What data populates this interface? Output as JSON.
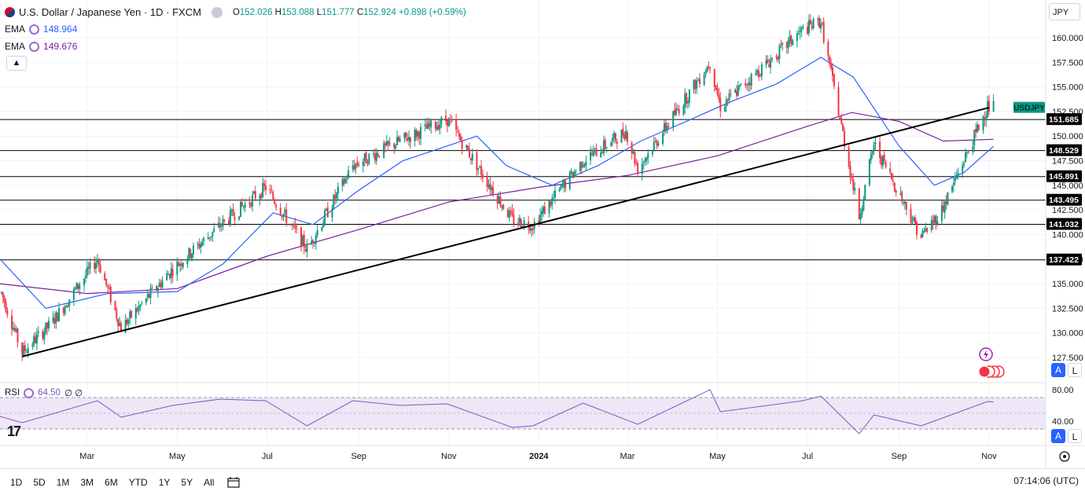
{
  "header": {
    "symbol_title": "U.S. Dollar / Japanese Yen · 1D · FXCM",
    "open_label": "O",
    "open": "152.026",
    "high_label": "H",
    "high": "153.088",
    "low_label": "L",
    "low": "151.777",
    "close_label": "C",
    "close": "152.924",
    "change": "+0.898 (+0.59%)"
  },
  "indicators": {
    "ema1_label": "EMA",
    "ema1_value": "148.964",
    "ema2_label": "EMA",
    "ema2_value": "149.676",
    "rsi_label": "RSI",
    "rsi_value": "64.50",
    "rsi_extra": "∅ ∅"
  },
  "currency": "JPY",
  "axis_buttons": {
    "auto": "A",
    "log": "L"
  },
  "bottom": {
    "periods": [
      "1D",
      "5D",
      "1M",
      "3M",
      "6M",
      "YTD",
      "1Y",
      "5Y",
      "All"
    ],
    "time": "07:14:06 (UTC)"
  },
  "colors": {
    "up": "#089981",
    "down": "#f23645",
    "ema_fast": "#2962ff",
    "ema_slow": "#7b1fa2",
    "rsi_line": "#7e57c2",
    "rsi_band": "#ede7f6",
    "symbol_tag": "#089981"
  },
  "chart_data": {
    "type": "candlestick",
    "symbol_tag": "USDJPY",
    "x_tick_labels": [
      "Mar",
      "May",
      "Jul",
      "Sep",
      "Nov",
      "2024",
      "Mar",
      "May",
      "Jul",
      "Sep",
      "Nov"
    ],
    "y_tick_labels": [
      "127.500",
      "130.000",
      "132.500",
      "135.000",
      "137.500",
      "140.000",
      "142.500",
      "145.000",
      "147.500",
      "150.000",
      "152.500",
      "155.000",
      "157.500",
      "160.000"
    ],
    "ylim": [
      126.5,
      163.5
    ],
    "rsi_tick_labels": [
      "40.00",
      "80.00"
    ],
    "rsi_ylim": [
      20,
      90
    ],
    "rsi_band": [
      30,
      70
    ],
    "horizontal_levels": [
      "151.685",
      "148.529",
      "145.891",
      "143.495",
      "141.032",
      "137.422"
    ],
    "trendline": {
      "from": {
        "date": "2023-01-16",
        "price": 127.6
      },
      "to": {
        "date": "2024-11-01",
        "price": 152.9
      }
    },
    "price_path": [
      [
        "2023-01-01",
        134.5
      ],
      [
        "2023-01-16",
        128.0
      ],
      [
        "2023-02-05",
        131.0
      ],
      [
        "2023-03-08",
        137.5
      ],
      [
        "2023-03-24",
        130.5
      ],
      [
        "2023-04-28",
        136.5
      ],
      [
        "2023-05-30",
        140.9
      ],
      [
        "2023-06-30",
        144.8
      ],
      [
        "2023-07-28",
        138.5
      ],
      [
        "2023-08-28",
        147.0
      ],
      [
        "2023-09-29",
        149.5
      ],
      [
        "2023-10-31",
        151.7
      ],
      [
        "2023-12-14",
        141.5
      ],
      [
        "2023-12-28",
        141.0
      ],
      [
        "2024-01-31",
        147.5
      ],
      [
        "2024-02-29",
        150.5
      ],
      [
        "2024-03-08",
        146.7
      ],
      [
        "2024-04-26",
        157.5
      ],
      [
        "2024-05-03",
        153.0
      ],
      [
        "2024-06-28",
        160.8
      ],
      [
        "2024-07-10",
        161.7
      ],
      [
        "2024-08-05",
        141.8
      ],
      [
        "2024-08-15",
        149.2
      ],
      [
        "2024-09-16",
        139.8
      ],
      [
        "2024-09-30",
        142.5
      ],
      [
        "2024-10-31",
        153.0
      ],
      [
        "2024-11-04",
        152.9
      ]
    ],
    "ema_fast_path": [
      [
        "2023-01-01",
        137.5
      ],
      [
        "2023-02-01",
        132.5
      ],
      [
        "2023-03-15",
        134.0
      ],
      [
        "2023-05-01",
        134.2
      ],
      [
        "2023-06-01",
        137.0
      ],
      [
        "2023-07-05",
        142.2
      ],
      [
        "2023-08-01",
        141.0
      ],
      [
        "2023-09-01",
        144.5
      ],
      [
        "2023-10-01",
        147.5
      ],
      [
        "2023-11-20",
        150.0
      ],
      [
        "2023-12-10",
        147.0
      ],
      [
        "2024-01-10",
        145.0
      ],
      [
        "2024-02-10",
        147.0
      ],
      [
        "2024-03-10",
        149.5
      ],
      [
        "2024-04-10",
        151.5
      ],
      [
        "2024-05-10",
        153.5
      ],
      [
        "2024-06-10",
        155.3
      ],
      [
        "2024-07-10",
        158.0
      ],
      [
        "2024-08-01",
        156.0
      ],
      [
        "2024-09-01",
        149.0
      ],
      [
        "2024-09-25",
        145.0
      ],
      [
        "2024-10-15",
        146.3
      ],
      [
        "2024-11-04",
        148.964
      ]
    ],
    "ema_slow_path": [
      [
        "2023-01-01",
        135.0
      ],
      [
        "2023-03-01",
        134.0
      ],
      [
        "2023-05-01",
        134.5
      ],
      [
        "2023-07-01",
        137.8
      ],
      [
        "2023-09-01",
        140.5
      ],
      [
        "2023-11-01",
        143.3
      ],
      [
        "2024-01-01",
        144.8
      ],
      [
        "2024-03-01",
        146.0
      ],
      [
        "2024-05-01",
        148.0
      ],
      [
        "2024-07-01",
        151.0
      ],
      [
        "2024-07-31",
        152.4
      ],
      [
        "2024-09-01",
        151.5
      ],
      [
        "2024-10-01",
        149.5
      ],
      [
        "2024-11-04",
        149.676
      ]
    ],
    "rsi_path": [
      [
        "2023-01-01",
        46
      ],
      [
        "2023-01-16",
        38
      ],
      [
        "2023-03-08",
        66
      ],
      [
        "2023-03-24",
        45
      ],
      [
        "2023-04-28",
        60
      ],
      [
        "2023-05-30",
        68
      ],
      [
        "2023-06-30",
        66
      ],
      [
        "2023-07-28",
        34
      ],
      [
        "2023-08-28",
        66
      ],
      [
        "2023-09-29",
        60
      ],
      [
        "2023-10-31",
        62
      ],
      [
        "2023-12-14",
        32
      ],
      [
        "2023-12-28",
        34
      ],
      [
        "2024-01-31",
        63
      ],
      [
        "2024-03-08",
        36
      ],
      [
        "2024-04-26",
        80
      ],
      [
        "2024-05-03",
        52
      ],
      [
        "2024-06-28",
        66
      ],
      [
        "2024-07-10",
        72
      ],
      [
        "2024-08-05",
        24
      ],
      [
        "2024-08-15",
        48
      ],
      [
        "2024-09-16",
        34
      ],
      [
        "2024-10-31",
        65
      ],
      [
        "2024-11-04",
        64.5
      ]
    ]
  }
}
